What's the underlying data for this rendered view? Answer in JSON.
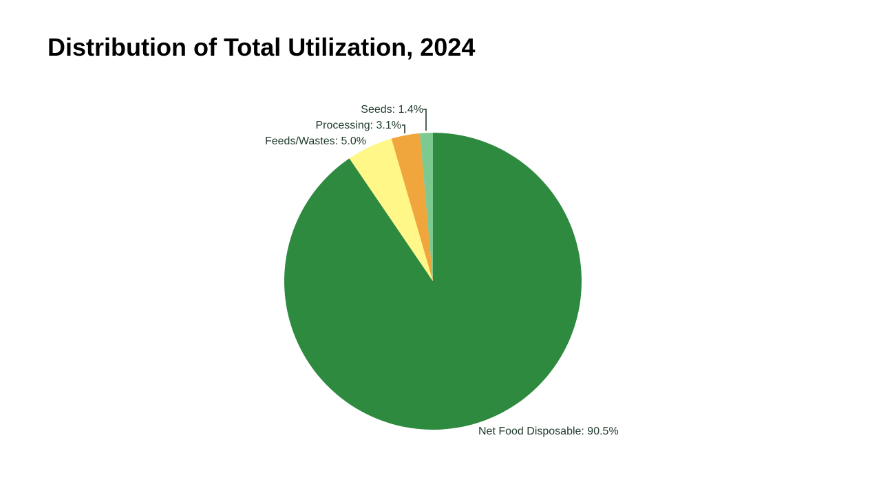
{
  "slide": {
    "title": "Distribution of Total Utilization, 2024"
  },
  "chart_data": {
    "type": "pie",
    "title": "",
    "start": "12 o'clock",
    "direction": "clockwise",
    "slices": [
      {
        "label": "Net Food Disposable",
        "value": 90.5,
        "color": "#2d8a3e",
        "label_text": "Net Food Disposable: 90.5%"
      },
      {
        "label": "Feeds/Wastes",
        "value": 5.0,
        "color": "#fff788",
        "label_text": "Feeds/Wastes: 5.0%"
      },
      {
        "label": "Processing",
        "value": 3.1,
        "color": "#f0a53d",
        "label_text": "Processing: 3.1%"
      },
      {
        "label": "Seeds",
        "value": 1.4,
        "color": "#7dc98f",
        "label_text": "Seeds: 1.4%"
      }
    ]
  }
}
